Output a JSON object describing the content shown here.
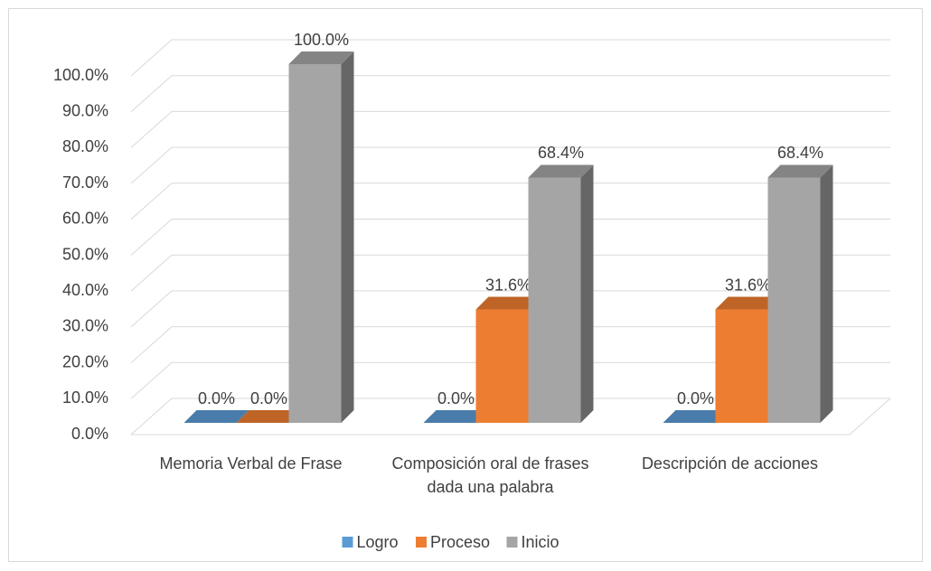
{
  "chart_data": {
    "type": "bar3d",
    "categories": [
      "Memoria Verbal de Frase",
      "Composición oral de frases dada una palabra",
      "Descripción de acciones"
    ],
    "series": [
      {
        "name": "Logro",
        "color": "#5b9bd5",
        "values": [
          0,
          0,
          0
        ],
        "value_labels": [
          "0.0%",
          "0.0%",
          "0.0%"
        ]
      },
      {
        "name": "Proceso",
        "color": "#ed7d31",
        "values": [
          0,
          31.6,
          31.6
        ],
        "value_labels": [
          "0.0%",
          "31.6%",
          "31.6%"
        ]
      },
      {
        "name": "Inicio",
        "color": "#a5a5a5",
        "values": [
          100,
          68.4,
          68.4
        ],
        "value_labels": [
          "100.0%",
          "68.4%",
          "68.4%"
        ]
      }
    ],
    "ylim": [
      0,
      100
    ],
    "yticks": [
      {
        "value": 0,
        "label": "0.0%"
      },
      {
        "value": 10,
        "label": "10.0%"
      },
      {
        "value": 20,
        "label": "20.0%"
      },
      {
        "value": 30,
        "label": "30.0%"
      },
      {
        "value": 40,
        "label": "40.0%"
      },
      {
        "value": 50,
        "label": "50.0%"
      },
      {
        "value": 60,
        "label": "60.0%"
      },
      {
        "value": 70,
        "label": "70.0%"
      },
      {
        "value": 80,
        "label": "80.0%"
      },
      {
        "value": 90,
        "label": "90.0%"
      },
      {
        "value": 100,
        "label": "100.0%"
      }
    ],
    "grid": true,
    "legend": "bottom"
  }
}
